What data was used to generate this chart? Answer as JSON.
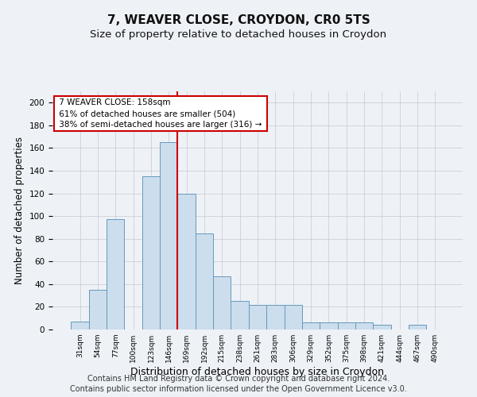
{
  "title": "7, WEAVER CLOSE, CROYDON, CR0 5TS",
  "subtitle": "Size of property relative to detached houses in Croydon",
  "xlabel": "Distribution of detached houses by size in Croydon",
  "ylabel": "Number of detached properties",
  "annotation_line1": "7 WEAVER CLOSE: 158sqm",
  "annotation_line2": "61% of detached houses are smaller (504)",
  "annotation_line3": "38% of semi-detached houses are larger (316) →",
  "bar_labels": [
    "31sqm",
    "54sqm",
    "77sqm",
    "100sqm",
    "123sqm",
    "146sqm",
    "169sqm",
    "192sqm",
    "215sqm",
    "238sqm",
    "261sqm",
    "283sqm",
    "306sqm",
    "329sqm",
    "352sqm",
    "375sqm",
    "398sqm",
    "421sqm",
    "444sqm",
    "467sqm",
    "490sqm"
  ],
  "bar_values": [
    7,
    35,
    97,
    0,
    135,
    165,
    120,
    85,
    47,
    25,
    22,
    22,
    22,
    6,
    6,
    6,
    6,
    4,
    0,
    4,
    0
  ],
  "bar_color": "#ccdded",
  "bar_edge_color": "#6699bb",
  "vline_color": "#cc0000",
  "annotation_box_color": "#cc0000",
  "footer_line1": "Contains HM Land Registry data © Crown copyright and database right 2024.",
  "footer_line2": "Contains public sector information licensed under the Open Government Licence v3.0.",
  "background_color": "#eef2f7",
  "plot_background": "#eef2f7",
  "ylim": [
    0,
    210
  ],
  "yticks": [
    0,
    20,
    40,
    60,
    80,
    100,
    120,
    140,
    160,
    180,
    200
  ],
  "title_fontsize": 11,
  "subtitle_fontsize": 9.5,
  "xlabel_fontsize": 9,
  "ylabel_fontsize": 8.5,
  "footer_fontsize": 7
}
